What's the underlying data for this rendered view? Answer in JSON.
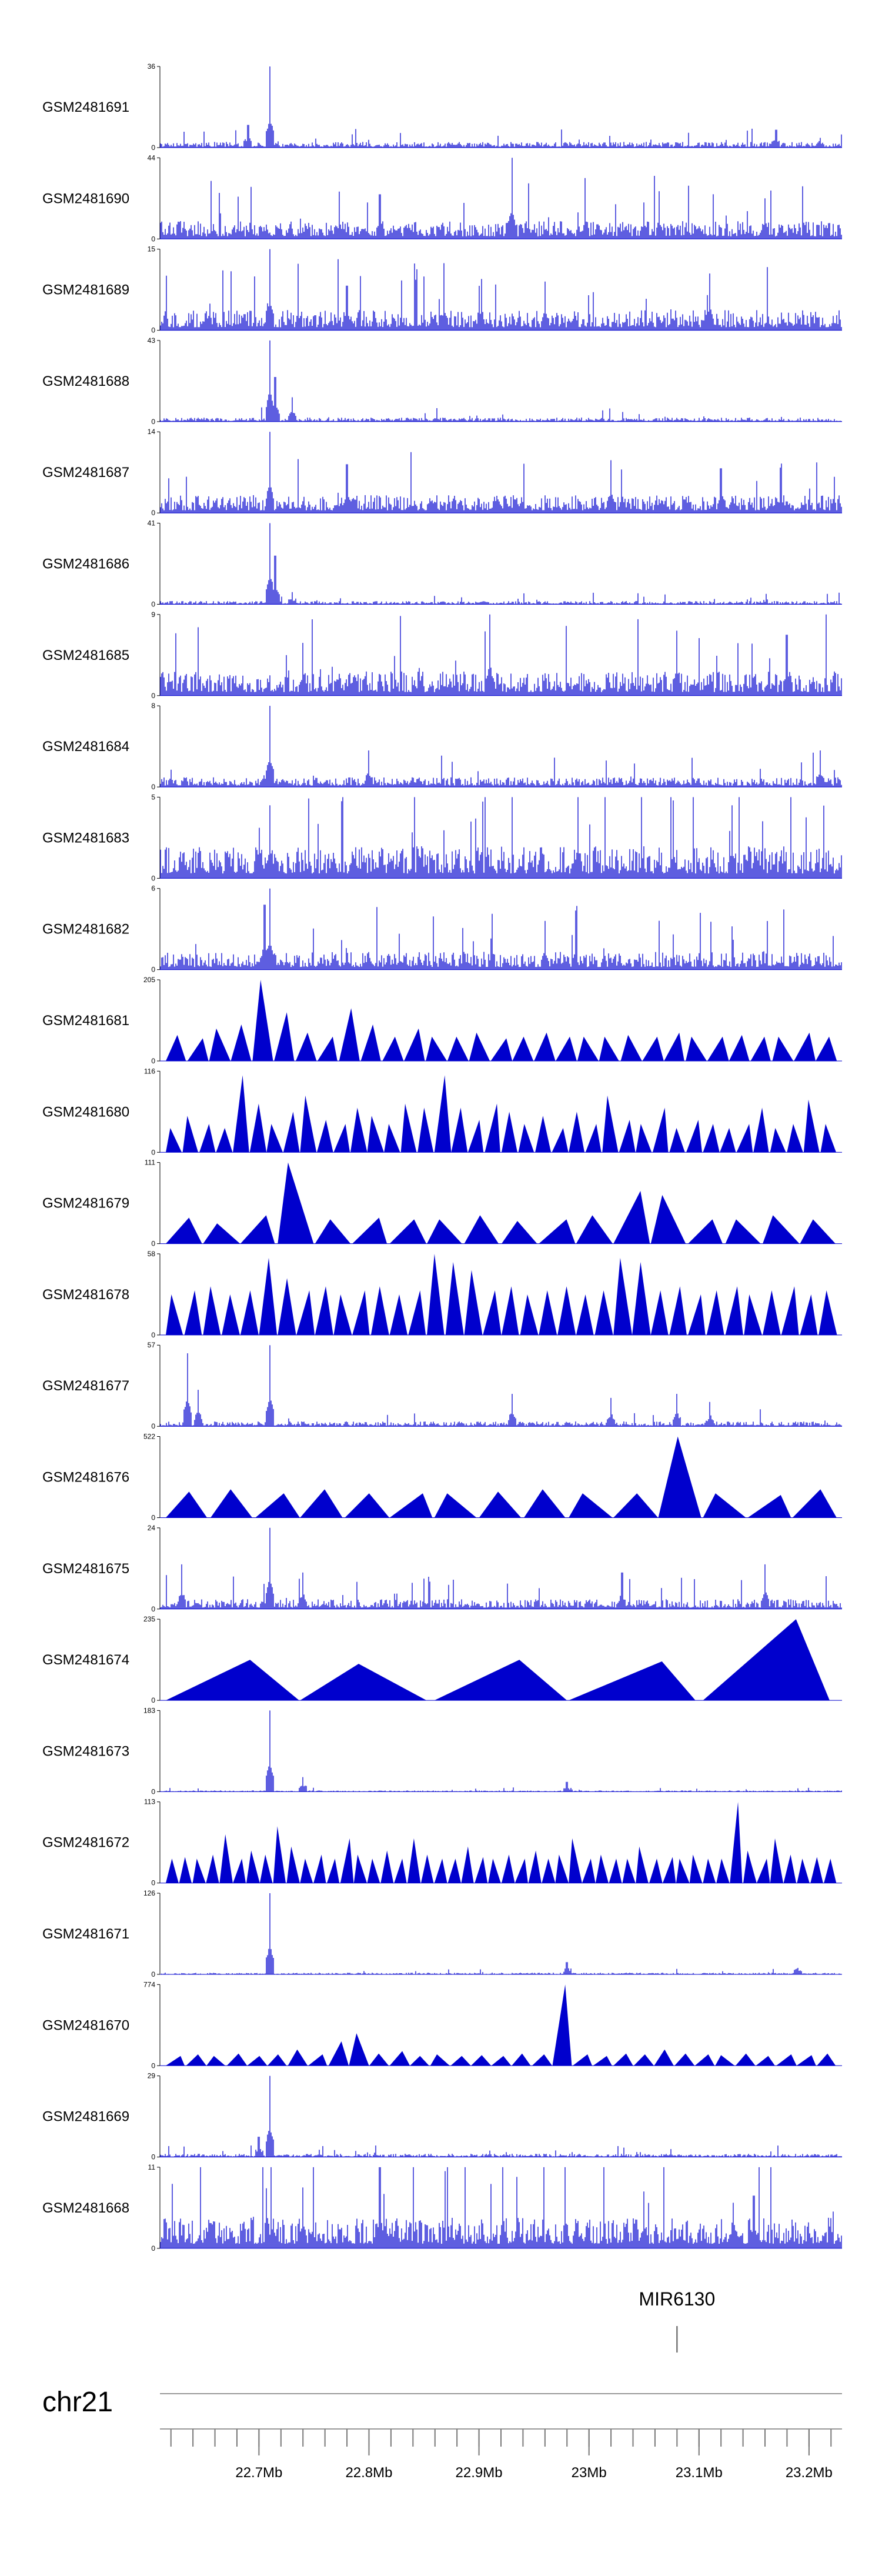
{
  "chart_data": {
    "type": "area",
    "genome": "hg38",
    "chromosome": "chr21",
    "x_range_mb": [
      22.61,
      23.23
    ],
    "x_ticks": [
      {
        "mb": 22.7,
        "label": "22.7Mb"
      },
      {
        "mb": 22.8,
        "label": "22.8Mb"
      },
      {
        "mb": 22.9,
        "label": "22.9Mb"
      },
      {
        "mb": 23.0,
        "label": "23Mb"
      },
      {
        "mb": 23.1,
        "label": "23.1Mb"
      },
      {
        "mb": 23.2,
        "label": "23.2Mb"
      }
    ],
    "minor_tick_step_mb": 0.02,
    "tracks": [
      {
        "name": "GSM2481691",
        "ymax": 36,
        "ymin": 0,
        "style": "dense",
        "base": 0.07,
        "peaks": [
          [
            22.69,
            0.28
          ],
          [
            22.71,
            1.0
          ],
          [
            23.17,
            0.22
          ],
          [
            23.21,
            0.12
          ]
        ]
      },
      {
        "name": "GSM2481690",
        "ymax": 44,
        "ymin": 0,
        "style": "dense",
        "base": 0.22,
        "peaks": [
          [
            22.93,
            1.0
          ],
          [
            22.81,
            0.55
          ],
          [
            23.05,
            0.45
          ],
          [
            23.16,
            0.5
          ]
        ]
      },
      {
        "name": "GSM2481689",
        "ymax": 15,
        "ymin": 0,
        "style": "dense",
        "base": 0.25,
        "peaks": [
          [
            22.71,
            1.0
          ],
          [
            22.78,
            0.55
          ],
          [
            23.11,
            0.7
          ],
          [
            22.96,
            0.6
          ]
        ]
      },
      {
        "name": "GSM2481688",
        "ymax": 43,
        "ymin": 0,
        "style": "dense",
        "base": 0.05,
        "peaks": [
          [
            22.71,
            1.0
          ],
          [
            22.715,
            0.55
          ],
          [
            22.73,
            0.3
          ]
        ]
      },
      {
        "name": "GSM2481687",
        "ymax": 14,
        "ymin": 0,
        "style": "dense",
        "base": 0.22,
        "peaks": [
          [
            22.71,
            1.0
          ],
          [
            22.78,
            0.6
          ],
          [
            23.02,
            0.65
          ],
          [
            23.12,
            0.55
          ]
        ]
      },
      {
        "name": "GSM2481686",
        "ymax": 41,
        "ymin": 0,
        "style": "dense",
        "base": 0.04,
        "peaks": [
          [
            22.71,
            1.0
          ],
          [
            22.715,
            0.6
          ],
          [
            22.73,
            0.15
          ]
        ]
      },
      {
        "name": "GSM2481685",
        "ymax": 9,
        "ymin": 0,
        "style": "dense",
        "base": 0.3,
        "peaks": [
          [
            22.91,
            1.0
          ],
          [
            22.74,
            0.65
          ],
          [
            23.08,
            0.8
          ],
          [
            23.18,
            0.75
          ]
        ]
      },
      {
        "name": "GSM2481684",
        "ymax": 8,
        "ymin": 0,
        "style": "dense",
        "base": 0.12,
        "peaks": [
          [
            22.71,
            1.0
          ],
          [
            22.8,
            0.45
          ],
          [
            23.21,
            0.45
          ]
        ]
      },
      {
        "name": "GSM2481683",
        "ymax": 5,
        "ymin": 0,
        "style": "dense",
        "base": 0.4,
        "peaks": [
          [
            22.71,
            0.9
          ],
          [
            22.99,
            1.0
          ],
          [
            23.13,
            0.9
          ]
        ]
      },
      {
        "name": "GSM2481682",
        "ymax": 6,
        "ymin": 0,
        "style": "dense",
        "base": 0.22,
        "peaks": [
          [
            22.71,
            1.0
          ],
          [
            22.705,
            0.8
          ],
          [
            22.96,
            0.6
          ]
        ]
      },
      {
        "name": "GSM2481681",
        "ymax": 205,
        "ymin": 0,
        "style": "triangles",
        "heights": [
          0.32,
          0.28,
          0.4,
          0.45,
          1.0,
          0.6,
          0.35,
          0.3,
          0.65,
          0.45,
          0.3,
          0.4,
          0.3,
          0.3,
          0.35,
          0.28,
          0.3,
          0.35,
          0.3,
          0.3,
          0.3,
          0.32,
          0.3,
          0.35,
          0.3,
          0.3,
          0.32,
          0.3,
          0.3,
          0.35,
          0.3
        ]
      },
      {
        "name": "GSM2481680",
        "ymax": 116,
        "ymin": 0,
        "style": "triangles",
        "heights": [
          0.3,
          0.45,
          0.35,
          0.3,
          0.95,
          0.6,
          0.35,
          0.5,
          0.7,
          0.4,
          0.35,
          0.55,
          0.45,
          0.35,
          0.6,
          0.55,
          0.95,
          0.55,
          0.4,
          0.6,
          0.5,
          0.35,
          0.45,
          0.3,
          0.5,
          0.35,
          0.7,
          0.4,
          0.35,
          0.55,
          0.3,
          0.4,
          0.35,
          0.3,
          0.35,
          0.55,
          0.3,
          0.35,
          0.65,
          0.35
        ]
      },
      {
        "name": "GSM2481679",
        "ymax": 111,
        "ymin": 0,
        "style": "triangles",
        "heights": [
          0.32,
          0.25,
          0.35,
          1.0,
          0.3,
          0.32,
          0.3,
          0.3,
          0.35,
          0.28,
          0.3,
          0.35,
          0.65,
          0.6,
          0.3,
          0.3,
          0.35,
          0.3
        ]
      },
      {
        "name": "GSM2481678",
        "ymax": 58,
        "ymin": 0,
        "style": "triangles",
        "heights": [
          0.5,
          0.55,
          0.6,
          0.5,
          0.55,
          0.95,
          0.7,
          0.55,
          0.6,
          0.5,
          0.55,
          0.6,
          0.5,
          0.55,
          1.0,
          0.9,
          0.8,
          0.55,
          0.6,
          0.5,
          0.55,
          0.6,
          0.5,
          0.55,
          0.95,
          0.9,
          0.55,
          0.6,
          0.5,
          0.55,
          0.6,
          0.5,
          0.55,
          0.6,
          0.5,
          0.55
        ]
      },
      {
        "name": "GSM2481677",
        "ymax": 57,
        "ymin": 0,
        "style": "dense",
        "base": 0.06,
        "peaks": [
          [
            22.635,
            0.9
          ],
          [
            22.645,
            0.45
          ],
          [
            22.71,
            1.0
          ],
          [
            22.93,
            0.4
          ],
          [
            23.02,
            0.35
          ],
          [
            23.08,
            0.4
          ],
          [
            23.11,
            0.3
          ]
        ]
      },
      {
        "name": "GSM2481676",
        "ymax": 522,
        "ymin": 0,
        "style": "triangles",
        "heights": [
          0.32,
          0.35,
          0.3,
          0.35,
          0.3,
          0.3,
          0.3,
          0.32,
          0.35,
          0.3,
          0.3,
          1.0,
          0.3,
          0.28,
          0.35
        ]
      },
      {
        "name": "GSM2481675",
        "ymax": 24,
        "ymin": 0,
        "style": "dense",
        "base": 0.12,
        "peaks": [
          [
            22.71,
            1.0
          ],
          [
            22.63,
            0.55
          ],
          [
            22.74,
            0.45
          ],
          [
            23.03,
            0.45
          ],
          [
            23.16,
            0.55
          ]
        ]
      },
      {
        "name": "GSM2481674",
        "ymax": 235,
        "ymin": 0,
        "style": "triangles",
        "heights": [
          0.5,
          0.45,
          0.5,
          0.48,
          1.0
        ]
      },
      {
        "name": "GSM2481673",
        "ymax": 183,
        "ymin": 0,
        "style": "dense",
        "base": 0.015,
        "peaks": [
          [
            22.71,
            1.0
          ],
          [
            22.74,
            0.18
          ],
          [
            22.98,
            0.12
          ]
        ]
      },
      {
        "name": "GSM2481672",
        "ymax": 113,
        "ymin": 0,
        "style": "triangles",
        "heights": [
          0.3,
          0.32,
          0.3,
          0.35,
          0.6,
          0.3,
          0.4,
          0.35,
          0.7,
          0.45,
          0.3,
          0.35,
          0.3,
          0.55,
          0.35,
          0.3,
          0.4,
          0.3,
          0.55,
          0.35,
          0.3,
          0.3,
          0.45,
          0.32,
          0.3,
          0.35,
          0.3,
          0.4,
          0.3,
          0.35,
          0.55,
          0.3,
          0.35,
          0.3,
          0.3,
          0.45,
          0.3,
          0.32,
          0.3,
          0.35,
          0.3,
          0.3,
          1.0,
          0.4,
          0.3,
          0.55,
          0.35,
          0.3,
          0.32,
          0.3
        ]
      },
      {
        "name": "GSM2481671",
        "ymax": 126,
        "ymin": 0,
        "style": "dense",
        "base": 0.02,
        "peaks": [
          [
            22.71,
            1.0
          ],
          [
            22.98,
            0.15
          ],
          [
            23.19,
            0.08
          ]
        ]
      },
      {
        "name": "GSM2481670",
        "ymax": 774,
        "ymin": 0,
        "style": "triangles",
        "heights": [
          0.12,
          0.14,
          0.12,
          0.15,
          0.12,
          0.14,
          0.2,
          0.14,
          0.3,
          0.4,
          0.15,
          0.18,
          0.12,
          0.14,
          0.12,
          0.13,
          0.12,
          0.15,
          0.14,
          1.0,
          0.14,
          0.12,
          0.15,
          0.14,
          0.2,
          0.15,
          0.14,
          0.13,
          0.15,
          0.12,
          0.14,
          0.13,
          0.15
        ]
      },
      {
        "name": "GSM2481669",
        "ymax": 29,
        "ymin": 0,
        "style": "dense",
        "base": 0.04,
        "peaks": [
          [
            22.71,
            1.0
          ],
          [
            22.7,
            0.25
          ]
        ]
      },
      {
        "name": "GSM2481668",
        "ymax": 11,
        "ymin": 0,
        "style": "dense",
        "base": 0.38,
        "peaks": [
          [
            22.81,
            1.0
          ],
          [
            22.74,
            0.75
          ],
          [
            23.05,
            0.7
          ],
          [
            23.15,
            0.65
          ]
        ]
      }
    ],
    "genes": [
      {
        "name": "MIR6130",
        "start_mb": 23.08,
        "end_mb": 23.081
      }
    ]
  }
}
